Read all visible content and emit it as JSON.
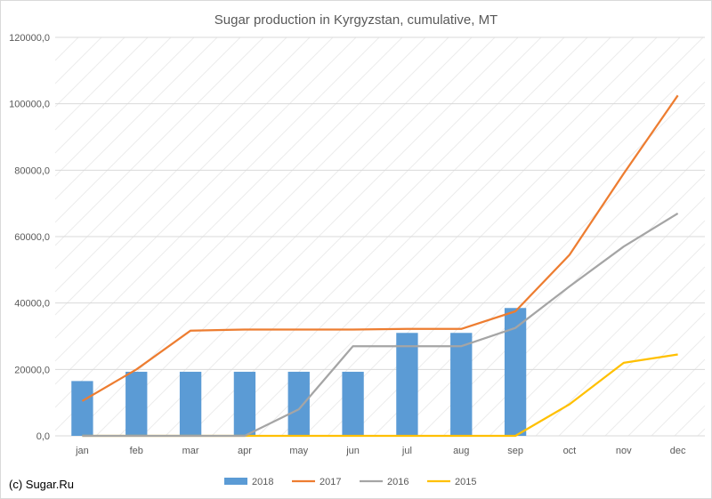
{
  "chart_data": {
    "type": "bar",
    "title": "Sugar production in Kyrgyzstan, cumulative, MT",
    "xlabel": "",
    "ylabel": "",
    "categories": [
      "jan",
      "feb",
      "mar",
      "apr",
      "may",
      "jun",
      "jul",
      "aug",
      "sep",
      "oct",
      "nov",
      "dec"
    ],
    "ylim": [
      0,
      120000
    ],
    "yticks": [
      0,
      20000,
      40000,
      60000,
      80000,
      100000,
      120000
    ],
    "ytick_labels": [
      "0,0",
      "20000,0",
      "40000,0",
      "60000,0",
      "80000,0",
      "100000,0",
      "120000,0"
    ],
    "grid": true,
    "legend_position": "bottom",
    "series": [
      {
        "name": "2018",
        "type": "bar",
        "color": "#5b9bd5",
        "values": [
          16500,
          19300,
          19300,
          19300,
          19300,
          19300,
          31000,
          31000,
          38500,
          null,
          null,
          null
        ]
      },
      {
        "name": "2017",
        "type": "line",
        "color": "#ed7d31",
        "values": [
          10500,
          20000,
          31700,
          32000,
          32000,
          32000,
          32200,
          32200,
          37500,
          54500,
          79000,
          102500
        ]
      },
      {
        "name": "2016",
        "type": "line",
        "color": "#a5a5a5",
        "values": [
          0,
          0,
          0,
          0,
          8000,
          27000,
          27000,
          27000,
          32500,
          45000,
          57000,
          67000
        ]
      },
      {
        "name": "2015",
        "type": "line",
        "color": "#ffc000",
        "values": [
          0,
          0,
          0,
          0,
          0,
          0,
          0,
          0,
          0,
          9500,
          22000,
          24500
        ]
      }
    ]
  },
  "credit": "(c) Sugar.Ru"
}
